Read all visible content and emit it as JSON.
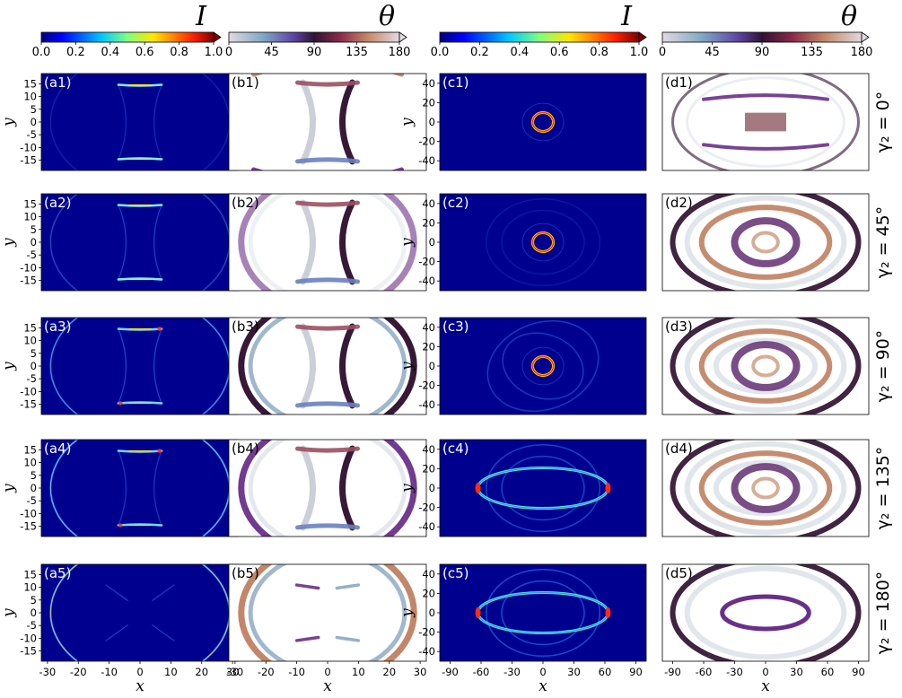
{
  "colors": {
    "intensity_background": "#00008f",
    "intensity_glow": "#2a8cff",
    "intensity_hot": "#ff2a10",
    "angle_light": "#dde3ea",
    "angle_dark": "#2c0c2c",
    "angle_mid": "#6a2f8a",
    "angle_warm": "#c08060",
    "frame": "#000000"
  },
  "chart_data": {
    "type": "heatmap",
    "title": "",
    "colorbars": [
      {
        "symbol": "I",
        "cmap": "jet",
        "ticks": [
          "0.0",
          "0.2",
          "0.4",
          "0.6",
          "0.8",
          "1.0"
        ],
        "range": [
          0,
          1
        ]
      },
      {
        "symbol": "θ",
        "cmap": "twilight",
        "ticks": [
          "0",
          "45",
          "90",
          "135",
          "180"
        ],
        "range": [
          0,
          180
        ]
      },
      {
        "symbol": "I",
        "cmap": "jet",
        "ticks": [
          "0.0",
          "0.2",
          "0.4",
          "0.6",
          "0.8",
          "1.0"
        ],
        "range": [
          0,
          1
        ]
      },
      {
        "symbol": "θ",
        "cmap": "twilight",
        "ticks": [
          "0",
          "45",
          "90",
          "135",
          "180"
        ],
        "range": [
          0,
          180
        ]
      }
    ],
    "axes": {
      "x_label": "x",
      "y_label": "y",
      "left_x_ticks": [
        "-30",
        "-20",
        "-10",
        "0",
        "10",
        "20",
        "30"
      ],
      "left_y_ticks": [
        "15",
        "10",
        "5",
        "0",
        "-5",
        "-10",
        "-15"
      ],
      "left_xlim": [
        -32,
        32
      ],
      "left_ylim": [
        -19,
        19
      ],
      "right_x_ticks": [
        "-90",
        "-60",
        "-30",
        "0",
        "30",
        "60",
        "90"
      ],
      "right_y_ticks": [
        "40",
        "20",
        "0",
        "-20",
        "-40"
      ],
      "right_xlim": [
        -100,
        100
      ],
      "right_ylim": [
        -50,
        50
      ]
    },
    "rows": [
      {
        "gamma_label": "γ₂ = 0°",
        "gamma_value": 0,
        "panels": [
          "(a1)",
          "(b1)",
          "(c1)",
          "(d1)"
        ]
      },
      {
        "gamma_label": "γ₂ = 45°",
        "gamma_value": 45,
        "panels": [
          "(a2)",
          "(b2)",
          "(c2)",
          "(d2)"
        ]
      },
      {
        "gamma_label": "γ₂ = 90°",
        "gamma_value": 90,
        "panels": [
          "(a3)",
          "(b3)",
          "(c3)",
          "(d3)"
        ]
      },
      {
        "gamma_label": "γ₂ = 135°",
        "gamma_value": 135,
        "panels": [
          "(a4)",
          "(b4)",
          "(c4)",
          "(d4)"
        ]
      },
      {
        "gamma_label": "γ₂ = 180°",
        "gamma_value": 180,
        "panels": [
          "(a5)",
          "(b5)",
          "(c5)",
          "(d5)"
        ]
      }
    ],
    "columns": [
      {
        "id": "a",
        "quantity": "I",
        "scale": "left"
      },
      {
        "id": "b",
        "quantity": "θ",
        "scale": "left"
      },
      {
        "id": "c",
        "quantity": "I",
        "scale": "right"
      },
      {
        "id": "d",
        "quantity": "θ",
        "scale": "right"
      }
    ]
  }
}
